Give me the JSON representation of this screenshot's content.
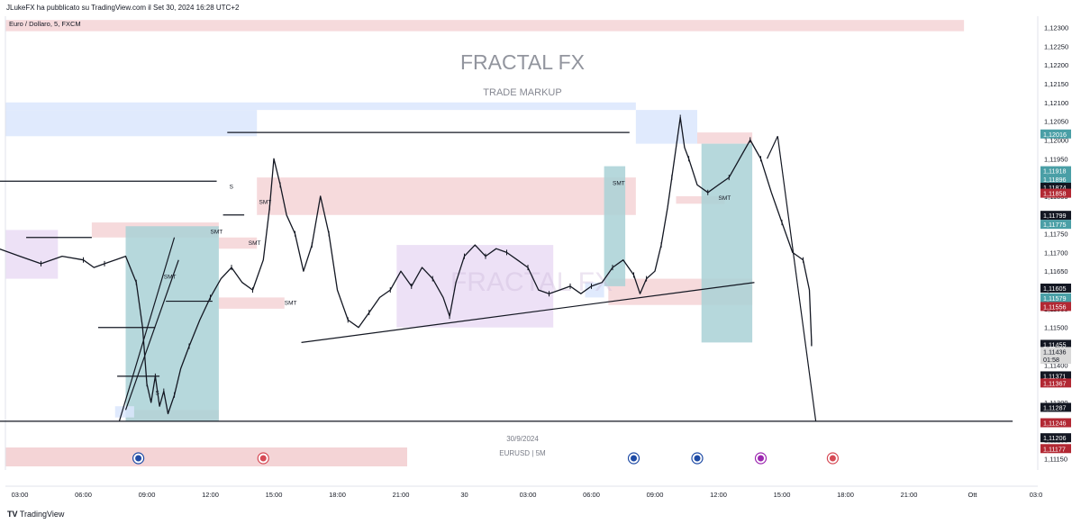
{
  "header": {
    "published_by": "JLukeFX ha pubblicato su TradingView.com il Set 30, 2024 16:28 UTC+2",
    "symbol_line": "Euro / Dollaro, 5, FXCM"
  },
  "watermark": {
    "title": "FRACTAL FX",
    "subtitle": "TRADE MARKUP",
    "inner": "FRACTAL FX"
  },
  "footer": {
    "date": "30/9/2024",
    "instrument": "EURUSD | 5M",
    "brand": "TradingView"
  },
  "colors": {
    "blue_zone": "#dbe6fd",
    "pink_zone": "#f4d4d6",
    "purple_zone": "#eadcf4",
    "teal_zone": "#a9d1d6",
    "candle": "#131722"
  },
  "chart_data": {
    "type": "line",
    "symbol": "EURUSD",
    "timeframe": "5",
    "ylim": [
      1.1112,
      1.1233
    ],
    "y_ticks": [
      "1,12300",
      "1,12250",
      "1,12200",
      "1,12150",
      "1,12100",
      "1,12050",
      "1,12000",
      "1,11950",
      "1,11900",
      "1,11850",
      "1,11800",
      "1,11750",
      "1,11700",
      "1,11650",
      "1,11600",
      "1,11550",
      "1,11500",
      "1,11450",
      "1,11400",
      "1,11350",
      "1,11300",
      "1,11250",
      "1,11200",
      "1,11150"
    ],
    "y_tick_values": [
      1.123,
      1.1225,
      1.122,
      1.1215,
      1.121,
      1.1205,
      1.12,
      1.1195,
      1.119,
      1.1185,
      1.118,
      1.1175,
      1.117,
      1.1165,
      1.116,
      1.1155,
      1.115,
      1.1145,
      1.114,
      1.1135,
      1.113,
      1.1125,
      1.112,
      1.1115
    ],
    "x_ticks": [
      "03:00",
      "06:00",
      "09:00",
      "12:00",
      "15:00",
      "18:00",
      "21:00",
      "30",
      "03:00",
      "06:00",
      "09:00",
      "12:00",
      "15:00",
      "18:00",
      "21:00",
      "Ott",
      "03:0"
    ],
    "x_tick_hours": [
      3,
      6,
      9,
      12,
      15,
      18,
      21,
      24,
      27,
      30,
      33,
      36,
      39,
      42,
      45,
      48,
      51
    ],
    "x_unit": "hours from 27/9/2024 00:00 (x axis labels show time of day)",
    "price_path": [
      [
        2.0,
        1.1171
      ],
      [
        3.0,
        1.1169
      ],
      [
        4.0,
        1.1167
      ],
      [
        5.0,
        1.1169
      ],
      [
        6.0,
        1.1168
      ],
      [
        6.5,
        1.1166
      ],
      [
        7.0,
        1.1167
      ],
      [
        8.0,
        1.1169
      ],
      [
        8.5,
        1.1162
      ],
      [
        8.8,
        1.115
      ],
      [
        9.0,
        1.1135
      ],
      [
        9.2,
        1.113
      ],
      [
        9.4,
        1.1137
      ],
      [
        9.6,
        1.1129
      ],
      [
        9.8,
        1.1133
      ],
      [
        10.0,
        1.1127
      ],
      [
        10.3,
        1.1132
      ],
      [
        10.6,
        1.1139
      ],
      [
        11.0,
        1.1145
      ],
      [
        11.5,
        1.1152
      ],
      [
        12.0,
        1.1158
      ],
      [
        12.5,
        1.1163
      ],
      [
        13.0,
        1.1166
      ],
      [
        13.5,
        1.1162
      ],
      [
        14.0,
        1.116
      ],
      [
        14.5,
        1.1168
      ],
      [
        14.8,
        1.1182
      ],
      [
        15.0,
        1.1195
      ],
      [
        15.3,
        1.1188
      ],
      [
        15.6,
        1.118
      ],
      [
        16.0,
        1.1175
      ],
      [
        16.4,
        1.1165
      ],
      [
        16.8,
        1.1172
      ],
      [
        17.2,
        1.1185
      ],
      [
        17.6,
        1.1175
      ],
      [
        18.0,
        1.116
      ],
      [
        18.5,
        1.1152
      ],
      [
        19.0,
        1.115
      ],
      [
        19.5,
        1.1154
      ],
      [
        20.0,
        1.1158
      ],
      [
        20.5,
        1.116
      ],
      [
        21.0,
        1.1165
      ],
      [
        21.5,
        1.1161
      ],
      [
        22.0,
        1.1166
      ],
      [
        22.5,
        1.1163
      ],
      [
        23.0,
        1.1158
      ],
      [
        23.3,
        1.1153
      ],
      [
        23.6,
        1.1162
      ],
      [
        24.0,
        1.1169
      ],
      [
        24.5,
        1.1172
      ],
      [
        25.0,
        1.1169
      ],
      [
        25.5,
        1.1171
      ],
      [
        26.0,
        1.117
      ],
      [
        26.5,
        1.1168
      ],
      [
        27.0,
        1.1166
      ],
      [
        27.5,
        1.116
      ],
      [
        28.0,
        1.1159
      ],
      [
        28.5,
        1.116
      ],
      [
        29.0,
        1.1161
      ],
      [
        29.5,
        1.1159
      ],
      [
        30.0,
        1.1161
      ],
      [
        30.5,
        1.1162
      ],
      [
        31.0,
        1.1166
      ],
      [
        31.5,
        1.1168
      ],
      [
        32.0,
        1.1164
      ],
      [
        32.3,
        1.1159
      ],
      [
        32.6,
        1.1163
      ],
      [
        33.0,
        1.1165
      ],
      [
        33.3,
        1.1172
      ],
      [
        33.6,
        1.1182
      ],
      [
        33.8,
        1.119
      ],
      [
        34.0,
        1.1198
      ],
      [
        34.2,
        1.1206
      ],
      [
        34.4,
        1.1198
      ],
      [
        34.6,
        1.1195
      ],
      [
        35.0,
        1.1188
      ],
      [
        35.5,
        1.1186
      ],
      [
        36.0,
        1.1188
      ],
      [
        36.5,
        1.119
      ],
      [
        37.0,
        1.1195
      ],
      [
        37.5,
        1.12
      ],
      [
        37.8,
        1.1197
      ],
      [
        38.0,
        1.1195
      ],
      [
        38.5,
        1.1186
      ],
      [
        39.0,
        1.1178
      ],
      [
        39.5,
        1.117
      ],
      [
        40.0,
        1.1168
      ],
      [
        40.3,
        1.116
      ],
      [
        40.4,
        1.1146
      ],
      [
        40.4,
        1.1145
      ]
    ],
    "zones": [
      {
        "label": "blue",
        "color": "#dbe6fd",
        "x": [
          0,
          14.2
        ],
        "y": [
          1.1201,
          1.1208
        ]
      },
      {
        "label": "blue",
        "color": "#dbe6fd",
        "x": [
          0,
          32.1
        ],
        "y": [
          1.1208,
          1.121
        ]
      },
      {
        "label": "blue",
        "color": "#dbe6fd",
        "x": [
          32.1,
          35.0
        ],
        "y": [
          1.1199,
          1.1208
        ]
      },
      {
        "label": "pink",
        "color": "#f4d4d6",
        "x": [
          0,
          47.6
        ],
        "y": [
          1.1229,
          1.1232
        ]
      },
      {
        "label": "pink",
        "color": "#f4d4d6",
        "x": [
          6.4,
          12.4
        ],
        "y": [
          1.1174,
          1.1178
        ]
      },
      {
        "label": "pink",
        "color": "#f4d4d6",
        "x": [
          12.4,
          14.2
        ],
        "y": [
          1.1171,
          1.1174
        ]
      },
      {
        "label": "pink",
        "color": "#f4d4d6",
        "x": [
          14.2,
          32.1
        ],
        "y": [
          1.118,
          1.119
        ]
      },
      {
        "label": "pink",
        "color": "#f4d4d6",
        "x": [
          12.4,
          15.5
        ],
        "y": [
          1.1155,
          1.1158
        ]
      },
      {
        "label": "pink",
        "color": "#f4d4d6",
        "x": [
          30.8,
          37.6
        ],
        "y": [
          1.1156,
          1.1163
        ]
      },
      {
        "label": "pink",
        "color": "#f4d4d6",
        "x": [
          35.0,
          37.6
        ],
        "y": [
          1.1199,
          1.1202
        ]
      },
      {
        "label": "pink",
        "color": "#f4d4d6",
        "x": [
          34.0,
          36.3
        ],
        "y": [
          1.1183,
          1.1185
        ]
      },
      {
        "label": "pink",
        "color": "#f4d4d6",
        "x": [
          8.0,
          12.4
        ],
        "y": [
          1.1125,
          1.1128
        ]
      },
      {
        "label": "purple",
        "color": "#eadcf4",
        "x": [
          0,
          4.8
        ],
        "y": [
          1.1163,
          1.1176
        ]
      },
      {
        "label": "purple",
        "color": "#eadcf4",
        "x": [
          20.8,
          28.2
        ],
        "y": [
          1.115,
          1.1172
        ]
      },
      {
        "label": "teal",
        "color": "#a9d1d6",
        "x": [
          8.0,
          12.4
        ],
        "y": [
          1.1125,
          1.1177
        ]
      },
      {
        "label": "teal",
        "color": "#a9d1d6",
        "x": [
          30.6,
          31.6
        ],
        "y": [
          1.1161,
          1.1193
        ]
      },
      {
        "label": "teal",
        "color": "#a9d1d6",
        "x": [
          35.2,
          37.6
        ],
        "y": [
          1.1146,
          1.1199
        ]
      },
      {
        "label": "blue",
        "color": "#dbe6fd",
        "x": [
          29.7,
          30.6
        ],
        "y": [
          1.1158,
          1.1162
        ]
      },
      {
        "label": "blue",
        "color": "#dbe6fd",
        "x": [
          7.5,
          8.4
        ],
        "y": [
          1.1126,
          1.1129
        ]
      }
    ],
    "lines": [
      {
        "x": [
          0,
          12.3
        ],
        "y": [
          1.1189,
          1.1189
        ]
      },
      {
        "x": [
          0,
          49.9
        ],
        "y": [
          1.1125,
          1.1125
        ]
      },
      {
        "x": [
          12.8,
          31.8
        ],
        "y": [
          1.1202,
          1.1202
        ]
      },
      {
        "x": [
          3.3,
          6.4
        ],
        "y": [
          1.1174,
          1.1174
        ]
      },
      {
        "x": [
          6.7,
          9.4
        ],
        "y": [
          1.115,
          1.115
        ]
      },
      {
        "x": [
          9.9,
          12.1
        ],
        "y": [
          1.1157,
          1.1157
        ]
      },
      {
        "x": [
          7.6,
          9.6
        ],
        "y": [
          1.1137,
          1.1137
        ]
      },
      {
        "x": [
          12.6,
          13.6
        ],
        "y": [
          1.118,
          1.118
        ]
      },
      {
        "x": [
          16.3,
          37.7
        ],
        "y": [
          1.1146,
          1.1162
        ]
      },
      {
        "x": [
          38.8,
          40.6
        ],
        "y": [
          1.1201,
          1.1125
        ]
      },
      {
        "x": [
          38.3,
          38.8
        ],
        "y": [
          1.1195,
          1.1201
        ]
      },
      {
        "x": [
          7.7,
          10.3
        ],
        "y": [
          1.1125,
          1.1174
        ]
      },
      {
        "x": [
          8.0,
          10.5
        ],
        "y": [
          1.1128,
          1.1168
        ]
      }
    ],
    "annotations": [
      "SMT",
      "SMT",
      "SMT",
      "SMT",
      "SMT",
      "SMT",
      "SMT",
      "S",
      "S"
    ],
    "annotation_positions": [
      [
        12.0,
        1.1175
      ],
      [
        13.8,
        1.1172
      ],
      [
        9.8,
        1.1163
      ],
      [
        15.5,
        1.1156
      ],
      [
        31.0,
        1.1188
      ],
      [
        36.0,
        1.1184
      ],
      [
        14.3,
        1.1183
      ],
      [
        12.9,
        1.1187
      ],
      [
        9.4,
        1.1132
      ]
    ],
    "price_labels": [
      {
        "text": "1,12016",
        "bg": "#4a9fa6",
        "fg": "#ffffff",
        "y": 1.12016
      },
      {
        "text": "1,11918",
        "bg": "#4a9fa6",
        "fg": "#ffffff",
        "y": 1.11918
      },
      {
        "text": "1,11896",
        "bg": "#4a9fa6",
        "fg": "#ffffff",
        "y": 1.11896
      },
      {
        "text": "1,11874",
        "bg": "#131722",
        "fg": "#ffffff",
        "y": 1.11874
      },
      {
        "text": "1,11858",
        "bg": "#b22833",
        "fg": "#ffffff",
        "y": 1.11858
      },
      {
        "text": "1,11799",
        "bg": "#131722",
        "fg": "#ffffff",
        "y": 1.11799
      },
      {
        "text": "1,11775",
        "bg": "#4a9fa6",
        "fg": "#ffffff",
        "y": 1.11775
      },
      {
        "text": "1,11605",
        "bg": "#131722",
        "fg": "#ffffff",
        "y": 1.11605
      },
      {
        "text": "1,11579",
        "bg": "#4a9fa6",
        "fg": "#ffffff",
        "y": 1.11579
      },
      {
        "text": "1,11556",
        "bg": "#b22833",
        "fg": "#ffffff",
        "y": 1.11556
      },
      {
        "text": "1,11455",
        "bg": "#131722",
        "fg": "#ffffff",
        "y": 1.11455
      },
      {
        "text": "1,11436",
        "bg": "#d9d9d9",
        "fg": "#131722",
        "y": 1.11436
      },
      {
        "text": "01:58",
        "bg": "#d9d9d9",
        "fg": "#131722",
        "y": 1.11415
      },
      {
        "text": "1,11371",
        "bg": "#131722",
        "fg": "#ffffff",
        "y": 1.11371
      },
      {
        "text": "1,11367",
        "bg": "#b22833",
        "fg": "#ffffff",
        "y": 1.11352
      },
      {
        "text": "1,11287",
        "bg": "#131722",
        "fg": "#ffffff",
        "y": 1.11287
      },
      {
        "text": "1,11246",
        "bg": "#b22833",
        "fg": "#ffffff",
        "y": 1.11246
      },
      {
        "text": "1,11206",
        "bg": "#131722",
        "fg": "#ffffff",
        "y": 1.11206
      },
      {
        "text": "1,11177",
        "bg": "#b22833",
        "fg": "#ffffff",
        "y": 1.11177
      }
    ],
    "event_icons": [
      {
        "icon": "eu-flag-icon",
        "x": 8.6
      },
      {
        "icon": "us-flag-icon",
        "x": 14.5
      },
      {
        "icon": "eu-flag-icon",
        "x": 32.0
      },
      {
        "icon": "eu-flag-icon",
        "x": 35.0
      },
      {
        "icon": "lightning-icon",
        "x": 38.0
      },
      {
        "icon": "us-flag-icon",
        "x": 41.4
      }
    ]
  }
}
